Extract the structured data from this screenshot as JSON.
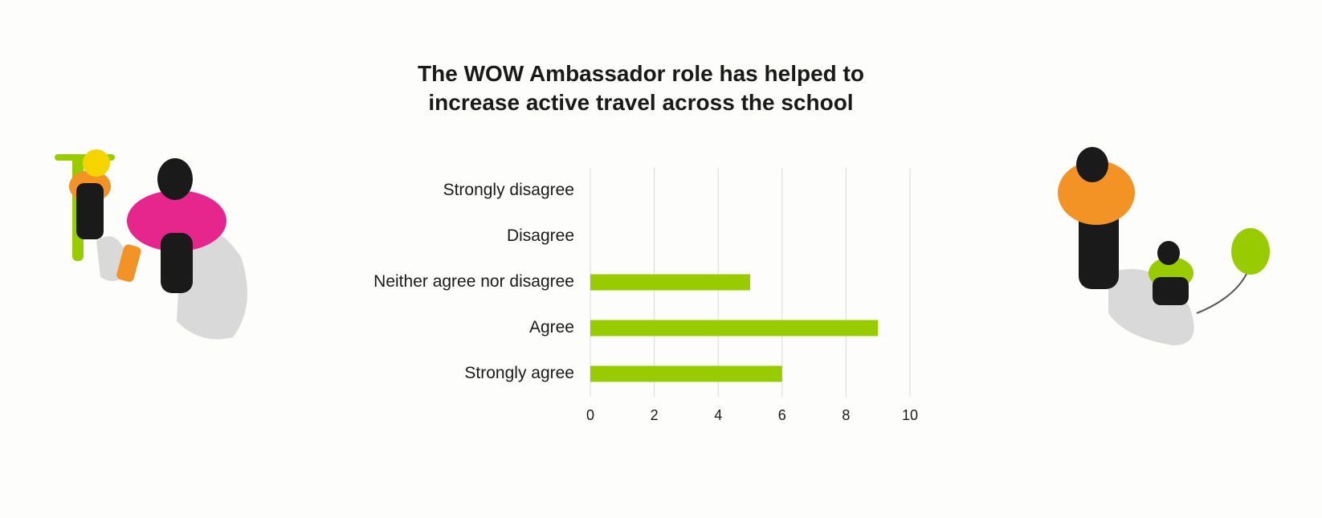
{
  "chart_data": {
    "type": "barh",
    "title": "The WOW Ambassador role has helped to increase active travel across the school",
    "categories": [
      "Strongly disagree",
      "Disagree",
      "Neither agree nor disagree",
      "Agree",
      "Strongly agree"
    ],
    "values": [
      0,
      0,
      5,
      9,
      6
    ],
    "color": "#99cc00",
    "xlim": [
      0,
      10
    ],
    "xticks": [
      0,
      2,
      4,
      6,
      8,
      10
    ],
    "grid": true
  }
}
